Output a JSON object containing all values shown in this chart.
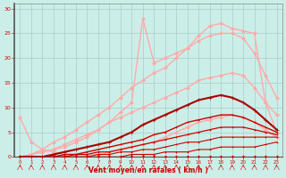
{
  "bg_color": "#cceee8",
  "grid_color": "#aacccc",
  "xlabel": "Vent moyen/en rafales ( km/h )",
  "xlabel_color": "#cc0000",
  "tick_color": "#cc0000",
  "xlim": [
    -0.5,
    23.5
  ],
  "ylim": [
    0,
    31
  ],
  "xticks": [
    0,
    1,
    2,
    3,
    4,
    5,
    6,
    7,
    8,
    9,
    10,
    11,
    12,
    13,
    14,
    15,
    16,
    17,
    18,
    19,
    20,
    21,
    22,
    23
  ],
  "yticks": [
    0,
    5,
    10,
    15,
    20,
    25,
    30
  ],
  "series": [
    {
      "x": [
        0,
        1,
        2,
        3,
        4,
        5,
        6,
        7,
        8,
        9,
        10,
        11,
        12,
        13,
        14,
        15,
        16,
        17,
        18,
        19,
        20,
        21,
        22,
        23
      ],
      "y": [
        0,
        0,
        0,
        0,
        0,
        0,
        0,
        0,
        0,
        0,
        0,
        0,
        0,
        0,
        0,
        0,
        0,
        0,
        0,
        0,
        0,
        0,
        0,
        0
      ],
      "color": "#cc0000",
      "lw": 0.8,
      "marker": "D",
      "ms": 1.5,
      "zorder": 3
    },
    {
      "x": [
        0,
        1,
        2,
        3,
        4,
        5,
        6,
        7,
        8,
        9,
        10,
        11,
        12,
        13,
        14,
        15,
        16,
        17,
        18,
        19,
        20,
        21,
        22,
        23
      ],
      "y": [
        0,
        0,
        0,
        0,
        0,
        0,
        0,
        0,
        0,
        0,
        0.5,
        0.5,
        0.5,
        1,
        1,
        1,
        1.5,
        1.5,
        2,
        2,
        2,
        2,
        2.5,
        3
      ],
      "color": "#cc0000",
      "lw": 0.8,
      "marker": "+",
      "ms": 2,
      "zorder": 3
    },
    {
      "x": [
        0,
        1,
        2,
        3,
        4,
        5,
        6,
        7,
        8,
        9,
        10,
        11,
        12,
        13,
        14,
        15,
        16,
        17,
        18,
        19,
        20,
        21,
        22,
        23
      ],
      "y": [
        0,
        0,
        0,
        0,
        0,
        0,
        0,
        0.5,
        0.5,
        1,
        1,
        1.5,
        1.5,
        2,
        2.5,
        3,
        3,
        3.5,
        4,
        4,
        4,
        4,
        4,
        4
      ],
      "color": "#cc0000",
      "lw": 0.8,
      "marker": "+",
      "ms": 2,
      "zorder": 3
    },
    {
      "x": [
        0,
        1,
        2,
        3,
        4,
        5,
        6,
        7,
        8,
        9,
        10,
        11,
        12,
        13,
        14,
        15,
        16,
        17,
        18,
        19,
        20,
        21,
        22,
        23
      ],
      "y": [
        0,
        0,
        0,
        0,
        0,
        0.5,
        0.5,
        1,
        1,
        1.5,
        2,
        2.5,
        3,
        3.5,
        4,
        4.5,
        5,
        5.5,
        6,
        6,
        6,
        5.5,
        5,
        4.5
      ],
      "color": "#cc0000",
      "lw": 0.9,
      "marker": "+",
      "ms": 2,
      "zorder": 3
    },
    {
      "x": [
        0,
        1,
        2,
        3,
        4,
        5,
        6,
        7,
        8,
        9,
        10,
        11,
        12,
        13,
        14,
        15,
        16,
        17,
        18,
        19,
        20,
        21,
        22,
        23
      ],
      "y": [
        0,
        0,
        0,
        0,
        0.5,
        0.5,
        1,
        1.5,
        2,
        2.5,
        3,
        3.5,
        4.5,
        5,
        6,
        7,
        7.5,
        8,
        8.5,
        8.5,
        8,
        7,
        6,
        5
      ],
      "color": "#cc0000",
      "lw": 1.0,
      "marker": "+",
      "ms": 2,
      "zorder": 3
    },
    {
      "x": [
        0,
        1,
        2,
        3,
        4,
        5,
        6,
        7,
        8,
        9,
        10,
        11,
        12,
        13,
        14,
        15,
        16,
        17,
        18,
        19,
        20,
        21,
        22,
        23
      ],
      "y": [
        0,
        0,
        0,
        0.5,
        1,
        1.5,
        2,
        2.5,
        3,
        4,
        5,
        6.5,
        7.5,
        8.5,
        9.5,
        10.5,
        11.5,
        12,
        12.5,
        12,
        11,
        9.5,
        7.5,
        5.5
      ],
      "color": "#aa0000",
      "lw": 1.5,
      "marker": "+",
      "ms": 3,
      "zorder": 4
    },
    {
      "x": [
        0,
        1,
        2,
        3,
        4,
        5,
        6,
        7,
        8,
        9,
        10,
        11,
        12,
        13,
        14,
        15,
        16,
        17,
        18,
        19,
        20,
        21,
        22,
        23
      ],
      "y": [
        8,
        3,
        1.5,
        1,
        0.5,
        0.5,
        0.5,
        0.5,
        1,
        1.5,
        2,
        2.5,
        3,
        4,
        5,
        6,
        7,
        7.5,
        8,
        8.5,
        8,
        7,
        5.5,
        4
      ],
      "color": "#ffaaaa",
      "lw": 1.0,
      "marker": "D",
      "ms": 2,
      "zorder": 2
    },
    {
      "x": [
        0,
        1,
        2,
        3,
        4,
        5,
        6,
        7,
        8,
        9,
        10,
        11,
        12,
        13,
        14,
        15,
        16,
        17,
        18,
        19,
        20,
        21,
        22,
        23
      ],
      "y": [
        0,
        0.5,
        1,
        1.5,
        2.5,
        3.5,
        4.5,
        5.5,
        7,
        8,
        9,
        10,
        11,
        12,
        13,
        14,
        15.5,
        16,
        16.5,
        17,
        16.5,
        14,
        11,
        8.5
      ],
      "color": "#ffaaaa",
      "lw": 1.0,
      "marker": "D",
      "ms": 2,
      "zorder": 2
    },
    {
      "x": [
        0,
        1,
        2,
        3,
        4,
        5,
        6,
        7,
        8,
        9,
        10,
        11,
        12,
        13,
        14,
        15,
        16,
        17,
        18,
        19,
        20,
        21,
        22,
        23
      ],
      "y": [
        0,
        0.5,
        1.5,
        3,
        4,
        5.5,
        7,
        8.5,
        10,
        12,
        14,
        15.5,
        17,
        18,
        20,
        22,
        23.5,
        24.5,
        25,
        25,
        24,
        21,
        16.5,
        12
      ],
      "color": "#ffaaaa",
      "lw": 1.0,
      "marker": "D",
      "ms": 2,
      "zorder": 2
    },
    {
      "x": [
        0,
        2,
        3,
        4,
        5,
        6,
        7,
        8,
        9,
        10,
        11,
        12,
        13,
        14,
        15,
        16,
        17,
        18,
        19,
        20,
        21,
        22,
        23
      ],
      "y": [
        0,
        1,
        1.5,
        2,
        3,
        4,
        5.5,
        7,
        9,
        11,
        28,
        19,
        20,
        21,
        22,
        24.5,
        26.5,
        27,
        26,
        25.5,
        25,
        11,
        5
      ],
      "color": "#ffaaaa",
      "lw": 1.0,
      "marker": "D",
      "ms": 2,
      "zorder": 2
    }
  ]
}
